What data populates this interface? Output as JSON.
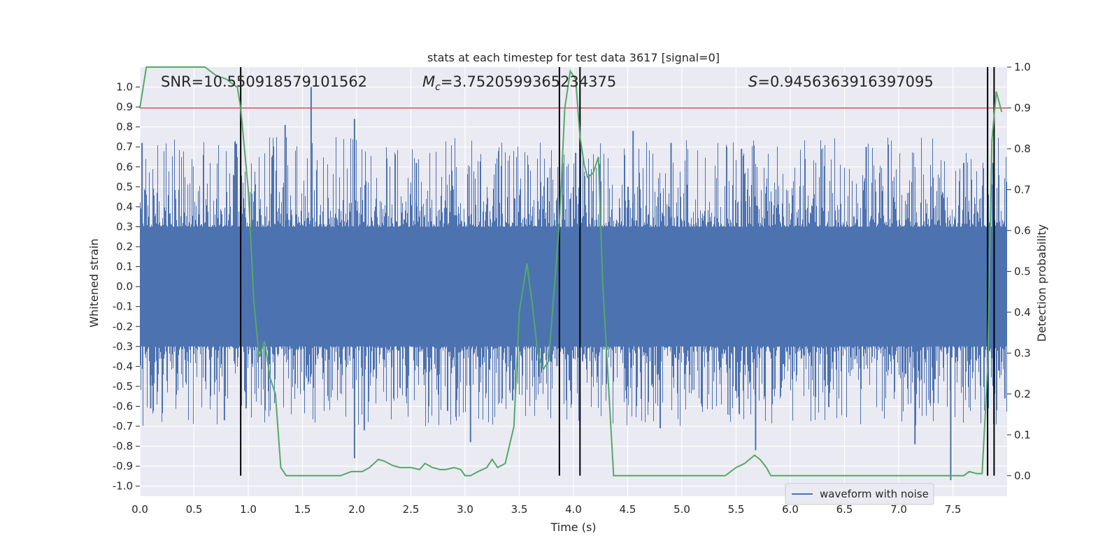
{
  "chart_data": {
    "type": "line",
    "title": "stats at each timestep for test data 3617 [signal=0]",
    "xlabel": "Time (s)",
    "ylabel": "Whitened strain",
    "y2label": "Detection probability",
    "xlim": [
      0.0,
      8.0
    ],
    "ylim": [
      -1.05,
      1.1
    ],
    "y2lim": [
      -0.05,
      1.0
    ],
    "xticks": [
      "0.0",
      "0.5",
      "1.0",
      "1.5",
      "2.0",
      "2.5",
      "3.0",
      "3.5",
      "4.0",
      "4.5",
      "5.0",
      "5.5",
      "6.0",
      "6.5",
      "7.0",
      "7.5"
    ],
    "yticks": [
      "-1.0",
      "-0.9",
      "-0.8",
      "-0.7",
      "-0.6",
      "-0.5",
      "-0.4",
      "-0.3",
      "-0.2",
      "-0.1",
      "0.0",
      "0.1",
      "0.2",
      "0.3",
      "0.4",
      "0.5",
      "0.6",
      "0.7",
      "0.8",
      "0.9",
      "1.0"
    ],
    "y2ticks": [
      "0.0",
      "0.1",
      "0.2",
      "0.3",
      "0.4",
      "0.5",
      "0.6",
      "0.7",
      "0.8",
      "0.9",
      "1.0"
    ],
    "annotations": {
      "snr": "SNR=10.550918579101562",
      "mc_symbol": "M",
      "mc_sub": "c",
      "mc_value": "=3.7520599365234375",
      "s_symbol": "S",
      "s_value": "=0.9456363916397095"
    },
    "legend": {
      "label": "waveform with noise",
      "location": "lower-right"
    },
    "threshold": {
      "value": 0.9,
      "axis": "right",
      "color": "#c44e52"
    },
    "vlines": [
      0.93,
      3.87,
      4.06,
      7.82,
      7.88
    ],
    "waveform": {
      "name": "waveform with noise",
      "color": "#4c72b0",
      "dense_band": [
        -0.35,
        0.4
      ],
      "spike_peaks_top": [
        {
          "t": 0.02,
          "v": 0.72
        },
        {
          "t": 1.34,
          "v": 0.81
        },
        {
          "t": 1.58,
          "v": 1.0
        },
        {
          "t": 1.98,
          "v": 0.84
        },
        {
          "t": 2.55,
          "v": 0.62
        },
        {
          "t": 3.9,
          "v": 0.62
        },
        {
          "t": 4.02,
          "v": 0.67
        },
        {
          "t": 4.55,
          "v": 0.78
        },
        {
          "t": 4.9,
          "v": 0.72
        },
        {
          "t": 5.55,
          "v": 0.69
        },
        {
          "t": 6.7,
          "v": 0.7
        },
        {
          "t": 7.6,
          "v": 0.62
        },
        {
          "t": 7.87,
          "v": 0.62
        }
      ],
      "spike_peaks_bottom": [
        {
          "t": 0.1,
          "v": -0.61
        },
        {
          "t": 0.78,
          "v": -0.67
        },
        {
          "t": 0.98,
          "v": -0.61
        },
        {
          "t": 1.98,
          "v": -0.86
        },
        {
          "t": 2.07,
          "v": -0.72
        },
        {
          "t": 3.05,
          "v": -0.78
        },
        {
          "t": 4.8,
          "v": -0.71
        },
        {
          "t": 5.68,
          "v": -0.82
        },
        {
          "t": 7.15,
          "v": -0.79
        },
        {
          "t": 7.48,
          "v": -0.97
        },
        {
          "t": 7.98,
          "v": -0.56
        }
      ]
    },
    "probability": {
      "name": "detection probability",
      "color": "#55a868",
      "x": [
        0.0,
        0.06,
        0.2,
        0.4,
        0.6,
        0.7,
        0.8,
        0.9,
        0.93,
        1.0,
        1.05,
        1.1,
        1.15,
        1.2,
        1.25,
        1.3,
        1.35,
        1.5,
        1.7,
        1.85,
        1.95,
        2.0,
        2.05,
        2.12,
        2.2,
        2.26,
        2.33,
        2.4,
        2.5,
        2.58,
        2.63,
        2.7,
        2.77,
        2.82,
        2.9,
        2.96,
        3.0,
        3.05,
        3.12,
        3.2,
        3.25,
        3.3,
        3.37,
        3.45,
        3.5,
        3.57,
        3.62,
        3.67,
        3.72,
        3.77,
        3.87,
        3.92,
        3.97,
        4.02,
        4.06,
        4.1,
        4.13,
        4.18,
        4.23,
        4.27,
        4.37,
        4.45,
        4.7,
        4.95,
        5.15,
        5.4,
        5.5,
        5.58,
        5.67,
        5.72,
        5.78,
        5.82,
        5.9,
        6.2,
        6.8,
        7.2,
        7.6,
        7.65,
        7.72,
        7.77,
        7.82,
        7.86,
        7.9,
        7.95
      ],
      "values": [
        0.9,
        1.0,
        1.0,
        1.0,
        1.0,
        0.98,
        0.97,
        0.95,
        0.9,
        0.7,
        0.43,
        0.29,
        0.33,
        0.24,
        0.2,
        0.02,
        0.0,
        0.0,
        0.0,
        0.0,
        0.01,
        0.01,
        0.01,
        0.02,
        0.04,
        0.035,
        0.025,
        0.02,
        0.02,
        0.015,
        0.03,
        0.02,
        0.015,
        0.015,
        0.02,
        0.015,
        0.0,
        0.0,
        0.01,
        0.02,
        0.04,
        0.02,
        0.03,
        0.12,
        0.4,
        0.52,
        0.42,
        0.3,
        0.26,
        0.28,
        0.62,
        0.9,
        0.99,
        0.97,
        0.83,
        0.76,
        0.73,
        0.74,
        0.78,
        0.47,
        0.0,
        0.0,
        0.0,
        0.0,
        0.0,
        0.0,
        0.02,
        0.03,
        0.05,
        0.04,
        0.02,
        0.0,
        0.0,
        0.0,
        0.0,
        0.0,
        0.0,
        0.01,
        0.005,
        0.005,
        0.26,
        0.82,
        0.94,
        0.89
      ]
    }
  }
}
